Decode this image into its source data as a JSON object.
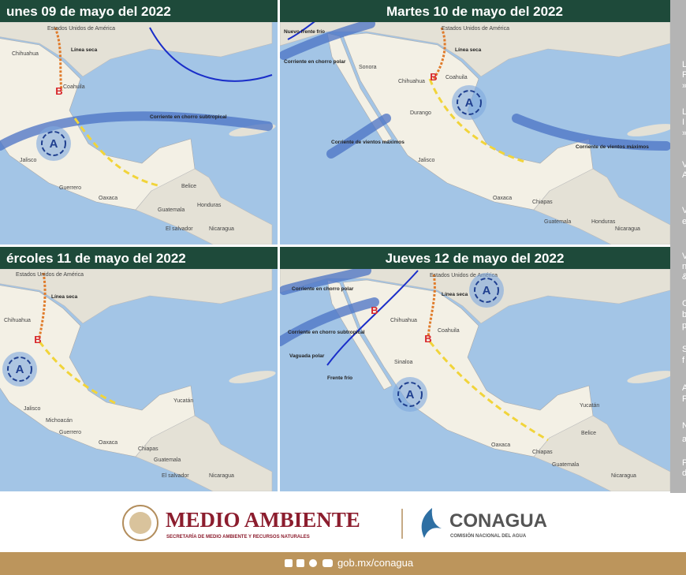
{
  "panels": [
    {
      "title": "unes 09 de mayo del 2022",
      "labels": [
        "Estados Unidos de América",
        "Línea seca",
        "Chihuahua",
        "Coahuila",
        "Corriente en chorro subtropical",
        "Jalisco",
        "Guerrero",
        "Oaxaca",
        "Belice",
        "Guatemala",
        "Honduras",
        "El salvador",
        "Nicaragua"
      ],
      "systems": [
        "B",
        "A"
      ]
    },
    {
      "title": "Martes 10 de mayo del 2022",
      "labels": [
        "Nuevo frente frío",
        "Corriente en chorro polar",
        "Sonora",
        "Estados Unidos de América",
        "Línea seca",
        "Chihuahua",
        "Coahuila",
        "Durango",
        "Corriente de vientos máximos",
        "Jalisco",
        "Oaxaca",
        "Chiapas",
        "Corriente de vientos máximos",
        "Guatemala",
        "Honduras",
        "Nicaragua"
      ],
      "systems": [
        "B",
        "A"
      ]
    },
    {
      "title": "ércoles 11 de mayo del 2022",
      "labels": [
        "Estados Unidos de América",
        "Línea seca",
        "Chihuahua",
        "Jalisco",
        "Michoacán",
        "Guerrero",
        "Oaxaca",
        "Chiapas",
        "Yucatán",
        "Guatemala",
        "El salvador",
        "Nicaragua"
      ],
      "systems": [
        "B",
        "A"
      ]
    },
    {
      "title": "Jueves 12 de mayo del 2022",
      "labels": [
        "Corriente en chorro polar",
        "Corriente en chorro subtropical",
        "Vaguada polar",
        "Frente frío",
        "Estados Unidos de América",
        "Línea seca",
        "Chihuahua",
        "Coahuila",
        "Sinaloa",
        "Oaxaca",
        "Chiapas",
        "Yucatán",
        "Belice",
        "Guatemala",
        "Nicaragua"
      ],
      "systems": [
        "B",
        "B",
        "A",
        "A"
      ]
    }
  ],
  "side_fragments": [
    "L",
    "F",
    "»",
    "L",
    "I",
    "»",
    "V",
    "A",
    "V",
    "e",
    "V",
    "n",
    "&",
    "C",
    "b",
    "p",
    "S",
    "f",
    "A",
    "F",
    "N",
    "a",
    "P",
    "d"
  ],
  "footer": {
    "brand1": "MEDIO AMBIENTE",
    "brand1_sub": "SECRETARÍA DE MEDIO AMBIENTE Y RECURSOS NATURALES",
    "brand2": "CONAGUA",
    "brand2_sub": "COMISIÓN NACIONAL DEL AGUA",
    "url": "gob.mx/conagua"
  }
}
